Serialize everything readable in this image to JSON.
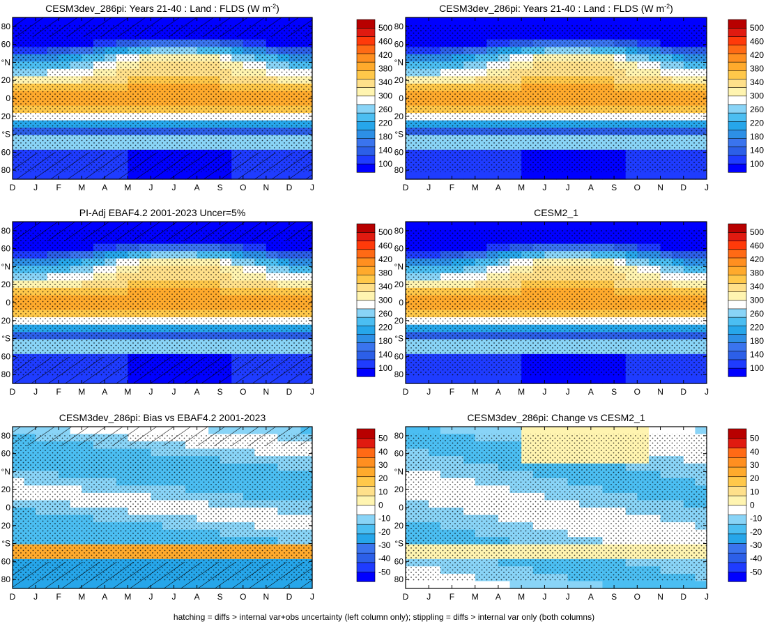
{
  "footer": "hatching = diffs > internal var+obs uncertainty (left column only); stippling = diffs > internal var only (both columns)",
  "months": [
    "D",
    "J",
    "F",
    "M",
    "A",
    "M",
    "J",
    "J",
    "A",
    "S",
    "O",
    "N",
    "D",
    "J"
  ],
  "lat_ticks": [
    "80",
    "60",
    "°N",
    "20",
    "0",
    "20",
    "°S",
    "60",
    "80"
  ],
  "colors": {
    "absolute": [
      "#0000ff",
      "#1f3cff",
      "#2c5fe8",
      "#3a74ee",
      "#2d8fe6",
      "#26a6ea",
      "#4bbef2",
      "#89d4f7",
      "#ffffff",
      "#fff4b0",
      "#ffe08a",
      "#ffc84a",
      "#ffaa2c",
      "#ff8f20",
      "#ff6a15",
      "#ff3a0a",
      "#e01a10",
      "#b80000"
    ],
    "diff": [
      "#0000ff",
      "#1f3cff",
      "#2c5fe8",
      "#3a74ee",
      "#26a6ea",
      "#4bbef2",
      "#89d4f7",
      "#ffffff",
      "#fff4b0",
      "#ffe08a",
      "#ffc84a",
      "#ffaa2c",
      "#ff8f20",
      "#ff6a15",
      "#e01a10",
      "#b80000"
    ]
  },
  "chart_data": [
    {
      "type": "heatmap",
      "panel": "top-left",
      "title_main": "CESM3dev_286pi: Years 21-40 : Land : FLDS (W m",
      "title_sup": "-2",
      "title_end": ")",
      "colorbar": [
        "500",
        "460",
        "420",
        "380",
        "340",
        "300",
        "260",
        "220",
        "180",
        "140",
        "100"
      ],
      "hatched": true,
      "stippled": true
    },
    {
      "type": "heatmap",
      "panel": "top-right",
      "title_main": "CESM3dev_286pi: Years 21-40 : Land : FLDS (W m",
      "title_sup": "-2",
      "title_end": ")",
      "colorbar": [
        "500",
        "460",
        "420",
        "380",
        "340",
        "300",
        "260",
        "220",
        "180",
        "140",
        "100"
      ],
      "hatched": false,
      "stippled": true
    },
    {
      "type": "heatmap",
      "panel": "middle-left",
      "title_main": "PI-Adj EBAF4.2 2001-2023 Uncer=5%",
      "title_sup": "",
      "title_end": "",
      "colorbar": [
        "500",
        "460",
        "420",
        "380",
        "340",
        "300",
        "260",
        "220",
        "180",
        "140",
        "100"
      ],
      "hatched": true,
      "stippled": true
    },
    {
      "type": "heatmap",
      "panel": "middle-right",
      "title_main": "CESM2_1",
      "title_sup": "",
      "title_end": "",
      "colorbar": [
        "500",
        "460",
        "420",
        "380",
        "340",
        "300",
        "260",
        "220",
        "180",
        "140",
        "100"
      ],
      "hatched": false,
      "stippled": true
    },
    {
      "type": "heatmap",
      "panel": "bottom-left",
      "title_main": "CESM3dev_286pi: Bias vs EBAF4.2 2001-2023",
      "title_sup": "",
      "title_end": "",
      "colorbar": [
        "50",
        "40",
        "30",
        "20",
        "10",
        "0",
        "-10",
        "-20",
        "-30",
        "-40",
        "-50"
      ],
      "hatched": true,
      "stippled": true
    },
    {
      "type": "heatmap",
      "panel": "bottom-right",
      "title_main": "CESM3dev_286pi: Change vs CESM2_1",
      "title_sup": "",
      "title_end": "",
      "colorbar": [
        "50",
        "40",
        "30",
        "20",
        "10",
        "0",
        "-10",
        "-20",
        "-30",
        "-40",
        "-50"
      ],
      "hatched": false,
      "stippled": true
    }
  ]
}
